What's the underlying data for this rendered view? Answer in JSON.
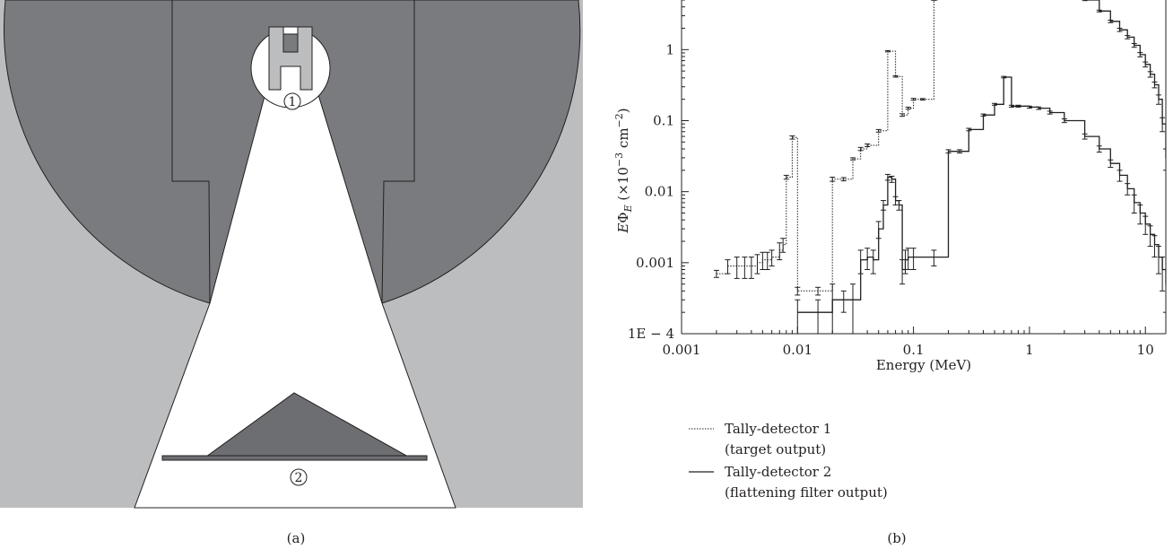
{
  "panel_a": {
    "label": "(a)",
    "markers": [
      "1",
      "2"
    ],
    "colors": {
      "light_region": "#bcbdbf",
      "dark_region": "#7a7b7e",
      "phantom": "#6d6e71",
      "beam": "#ffffff",
      "outline": "#231f20"
    }
  },
  "panel_b": {
    "label": "(b)"
  },
  "chart_data": {
    "type": "line",
    "title": "",
    "xlabel": "Energy (MeV)",
    "ylabel": "EΦE (×10−3 cm−2)",
    "ylabel_parts": {
      "sym_E": "E",
      "sym_Phi": "Φ",
      "sub_E": "E",
      "open": " (×10",
      "exp1": "−3",
      "unit": " cm",
      "exp2": "−2",
      "close": ")"
    },
    "x_scale": "log",
    "y_scale": "log",
    "xlim": [
      0.001,
      15
    ],
    "ylim": [
      0.0001,
      5
    ],
    "x_ticks": [
      0.001,
      0.01,
      0.1,
      1,
      10
    ],
    "x_tick_labels": [
      "0.001",
      "0.01",
      "0.1",
      "1",
      "10"
    ],
    "y_ticks": [
      0.0001,
      0.001,
      0.01,
      0.1,
      1
    ],
    "y_tick_labels": [
      "1E − 4",
      "0.001",
      "0.01",
      "0.1",
      "1"
    ],
    "legend_position": "bottom-left",
    "series": [
      {
        "name": "Tally-detector 1",
        "name_line2": "(target output)",
        "style": "dotted",
        "color": "#231f20",
        "points": [
          [
            0.002,
            0.0007,
            8e-05
          ],
          [
            0.0025,
            0.0009,
            0.0002
          ],
          [
            0.003,
            0.0009,
            0.0003
          ],
          [
            0.0035,
            0.0009,
            0.0003
          ],
          [
            0.004,
            0.0009,
            0.0003
          ],
          [
            0.0045,
            0.001,
            0.0003
          ],
          [
            0.005,
            0.0011,
            0.0003
          ],
          [
            0.0055,
            0.0011,
            0.0003
          ],
          [
            0.006,
            0.0012,
            0.0003
          ],
          [
            0.007,
            0.0015,
            0.0004
          ],
          [
            0.0075,
            0.0018,
            0.0004
          ],
          [
            0.008,
            0.016,
            0.001
          ],
          [
            0.009,
            0.058,
            0.003
          ],
          [
            0.01,
            0.0004,
            5e-05
          ],
          [
            0.015,
            0.0004,
            5e-05
          ],
          [
            0.02,
            0.015,
            0.001
          ],
          [
            0.025,
            0.015,
            0.0008
          ],
          [
            0.03,
            0.029,
            0.001
          ],
          [
            0.035,
            0.04,
            0.002
          ],
          [
            0.04,
            0.045,
            0.002
          ],
          [
            0.05,
            0.072,
            0.003
          ],
          [
            0.06,
            0.95,
            0.02
          ],
          [
            0.07,
            0.42,
            0.01
          ],
          [
            0.08,
            0.12,
            0.005
          ],
          [
            0.09,
            0.15,
            0.005
          ],
          [
            0.1,
            0.2,
            0.006
          ],
          [
            0.12,
            0.2,
            0.005
          ],
          [
            0.15,
            5,
            0.05
          ]
        ]
      },
      {
        "name": "Tally-detector 2",
        "name_line2": "(flattening filter output)",
        "style": "solid",
        "color": "#231f20",
        "points": [
          [
            0.01,
            0.0002,
            0.0001
          ],
          [
            0.015,
            0.0002,
            0.0001
          ],
          [
            0.02,
            0.0003,
            0.0002
          ],
          [
            0.025,
            0.0003,
            0.0001
          ],
          [
            0.03,
            0.0003,
            0.0002
          ],
          [
            0.035,
            0.0011,
            0.0004
          ],
          [
            0.04,
            0.0012,
            0.0004
          ],
          [
            0.045,
            0.0011,
            0.0004
          ],
          [
            0.05,
            0.003,
            0.0008
          ],
          [
            0.055,
            0.0065,
            0.001
          ],
          [
            0.06,
            0.016,
            0.0015
          ],
          [
            0.065,
            0.015,
            0.0015
          ],
          [
            0.07,
            0.0075,
            0.001
          ],
          [
            0.075,
            0.0065,
            0.001
          ],
          [
            0.08,
            0.0008,
            0.0003
          ],
          [
            0.085,
            0.0011,
            0.0004
          ],
          [
            0.09,
            0.0012,
            0.0004
          ],
          [
            0.1,
            0.0012,
            0.0004
          ],
          [
            0.15,
            0.0012,
            0.0003
          ],
          [
            0.2,
            0.037,
            0.002
          ],
          [
            0.25,
            0.037,
            0.002
          ],
          [
            0.3,
            0.075,
            0.003
          ],
          [
            0.4,
            0.12,
            0.004
          ],
          [
            0.5,
            0.17,
            0.005
          ],
          [
            0.6,
            0.41,
            0.01
          ],
          [
            0.7,
            0.16,
            0.005
          ],
          [
            0.8,
            0.16,
            0.005
          ],
          [
            1,
            0.155,
            0.005
          ],
          [
            1.2,
            0.15,
            0.006
          ],
          [
            1.5,
            0.13,
            0.006
          ],
          [
            2,
            0.1,
            0.006
          ],
          [
            3,
            0.06,
            0.005
          ],
          [
            4,
            0.04,
            0.004
          ],
          [
            5,
            0.025,
            0.003
          ],
          [
            6,
            0.017,
            0.003
          ],
          [
            7,
            0.011,
            0.002
          ],
          [
            8,
            0.007,
            0.002
          ],
          [
            9,
            0.005,
            0.0015
          ],
          [
            10,
            0.0035,
            0.001
          ],
          [
            11,
            0.0025,
            0.0008
          ],
          [
            12,
            0.0018,
            0.0006
          ],
          [
            13,
            0.0012,
            0.0005
          ],
          [
            14,
            0.0008,
            0.0004
          ],
          [
            15,
            0.0005,
            0.0003
          ]
        ]
      },
      {
        "name": "",
        "style": "upper-branch",
        "color": "#231f20",
        "points": [
          [
            3,
            5,
            0.1
          ],
          [
            4,
            3.5,
            0.1
          ],
          [
            5,
            2.5,
            0.1
          ],
          [
            6,
            1.9,
            0.1
          ],
          [
            7,
            1.5,
            0.08
          ],
          [
            8,
            1.15,
            0.07
          ],
          [
            9,
            0.85,
            0.06
          ],
          [
            10,
            0.62,
            0.05
          ],
          [
            11,
            0.45,
            0.04
          ],
          [
            12,
            0.32,
            0.03
          ],
          [
            13,
            0.2,
            0.03
          ],
          [
            14,
            0.09,
            0.02
          ],
          [
            15,
            0.03,
            0.01
          ]
        ]
      }
    ]
  }
}
